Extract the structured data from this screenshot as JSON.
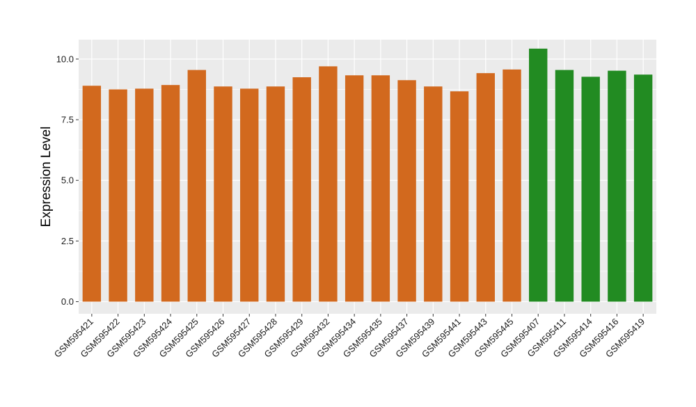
{
  "chart_data": {
    "type": "bar",
    "title": "",
    "xlabel": "",
    "ylabel": "Expression Level",
    "ylim": [
      -0.5,
      10.8
    ],
    "yticks": [
      0.0,
      2.5,
      5.0,
      7.5,
      10.0
    ],
    "ytick_labels": [
      "0.0",
      "2.5",
      "5.0",
      "7.5",
      "10.0"
    ],
    "grid": true,
    "legend": "none",
    "categories": [
      "GSM595421",
      "GSM595422",
      "GSM595423",
      "GSM595424",
      "GSM595425",
      "GSM595426",
      "GSM595427",
      "GSM595428",
      "GSM595429",
      "GSM595432",
      "GSM595434",
      "GSM595435",
      "GSM595437",
      "GSM595439",
      "GSM595441",
      "GSM595443",
      "GSM595445",
      "GSM595407",
      "GSM595411",
      "GSM595414",
      "GSM595416",
      "GSM595419"
    ],
    "values": [
      8.9,
      8.75,
      8.78,
      8.93,
      9.55,
      8.87,
      8.78,
      8.87,
      9.25,
      9.7,
      9.33,
      9.33,
      9.13,
      8.87,
      8.67,
      9.42,
      9.57,
      10.43,
      9.55,
      9.27,
      9.52,
      9.36
    ],
    "bar_colors": [
      "#D2691E",
      "#D2691E",
      "#D2691E",
      "#D2691E",
      "#D2691E",
      "#D2691E",
      "#D2691E",
      "#D2691E",
      "#D2691E",
      "#D2691E",
      "#D2691E",
      "#D2691E",
      "#D2691E",
      "#D2691E",
      "#D2691E",
      "#D2691E",
      "#D2691E",
      "#228B22",
      "#228B22",
      "#228B22",
      "#228B22",
      "#228B22"
    ],
    "colors": {
      "group_a": "#D2691E",
      "group_b": "#228B22",
      "panel_background": "#EBEBEB",
      "grid": "#FFFFFF"
    }
  }
}
